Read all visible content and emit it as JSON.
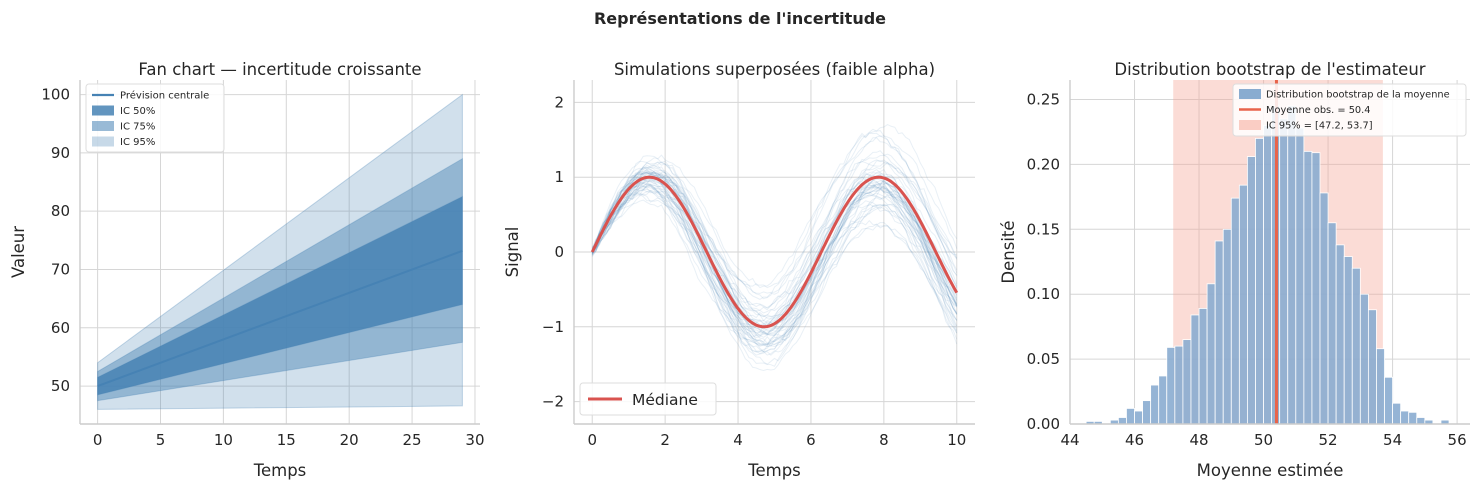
{
  "suptitle": "Représentations de l'incertitude",
  "chart_data": [
    {
      "type": "area",
      "title": "Fan chart — incertitude croissante",
      "xlabel": "Temps",
      "ylabel": "Valeur",
      "xlim": [
        -1.4,
        30.4
      ],
      "ylim": [
        43.5,
        102.5
      ],
      "xticks": [
        0,
        5,
        10,
        15,
        20,
        25,
        30
      ],
      "yticks": [
        50,
        60,
        70,
        80,
        90,
        100
      ],
      "grid": true,
      "legend_position": "upper-left",
      "central": {
        "name": "Prévision centrale",
        "x": [
          0,
          29
        ],
        "y": [
          50,
          73.2
        ],
        "color": "#4682B4"
      },
      "bands": [
        {
          "name": "IC 95%",
          "x": [
            0,
            29
          ],
          "lower": [
            46,
            46.6
          ],
          "upper": [
            54,
            100
          ],
          "color": "#4682B4",
          "opacity": 0.25
        },
        {
          "name": "IC 75%",
          "x": [
            0,
            29
          ],
          "lower": [
            47.5,
            57.5
          ],
          "upper": [
            52.5,
            89
          ],
          "color": "#4682B4",
          "opacity": 0.45
        },
        {
          "name": "IC 50%",
          "x": [
            0,
            29
          ],
          "lower": [
            48.5,
            64
          ],
          "upper": [
            51.5,
            82.5
          ],
          "color": "#4682B4",
          "opacity": 0.85
        }
      ],
      "legend": [
        "Prévision centrale",
        "IC 50%",
        "IC 75%",
        "IC 95%"
      ]
    },
    {
      "type": "line",
      "title": "Simulations superposées (faible alpha)",
      "xlabel": "Temps",
      "ylabel": "Signal",
      "xlim": [
        -0.5,
        10.5
      ],
      "ylim": [
        -2.3,
        2.3
      ],
      "xticks": [
        0,
        2,
        4,
        6,
        8,
        10
      ],
      "yticks": [
        -2,
        -1,
        0,
        1,
        2
      ],
      "ytick_labels": [
        "−2",
        "−1",
        "0",
        "1",
        "2"
      ],
      "grid": true,
      "legend_position": "lower-left",
      "median": {
        "name": "Médiane",
        "function": "sin",
        "x_range": [
          0,
          10
        ],
        "color": "#d9534f"
      },
      "simulations": {
        "count": 50,
        "color": "#4682B4",
        "opacity": 0.12,
        "noise_sd_at_end": 0.6
      },
      "legend": [
        "Médiane"
      ]
    },
    {
      "type": "bar",
      "title": "Distribution bootstrap de l'estimateur",
      "xlabel": "Moyenne estimée",
      "ylabel": "Densité",
      "xlim": [
        44,
        56.4
      ],
      "ylim": [
        0,
        0.265
      ],
      "xticks": [
        44,
        46,
        48,
        50,
        52,
        54,
        56
      ],
      "yticks": [
        0,
        0.05,
        0.1,
        0.15,
        0.2,
        0.25
      ],
      "ytick_labels": [
        "0.00",
        "0.05",
        "0.10",
        "0.15",
        "0.20",
        "0.25"
      ],
      "grid": true,
      "legend_position": "upper-right",
      "bin_start": 44.5,
      "bin_width": 0.25,
      "densities": [
        0.002,
        0.002,
        0.0,
        0.003,
        0.005,
        0.012,
        0.01,
        0.018,
        0.03,
        0.037,
        0.059,
        0.06,
        0.065,
        0.084,
        0.089,
        0.108,
        0.141,
        0.15,
        0.174,
        0.184,
        0.206,
        0.22,
        0.23,
        0.245,
        0.235,
        0.245,
        0.228,
        0.21,
        0.209,
        0.178,
        0.155,
        0.138,
        0.129,
        0.12,
        0.1,
        0.088,
        0.058,
        0.036,
        0.016,
        0.01,
        0.009,
        0.005,
        0.003,
        0.0,
        0.003
      ],
      "hist_name": "Distribution bootstrap de la moyenne",
      "hist_color": "#89acd0",
      "mean": {
        "name": "Moyenne obs. = 50.4",
        "value": 50.4,
        "color": "#e8634a"
      },
      "ci": {
        "name": "IC 95% = [47.2, 53.7]",
        "lower": 47.2,
        "upper": 53.7,
        "color": "#f6a799"
      },
      "legend": [
        "Distribution bootstrap de la moyenne",
        "Moyenne obs. = 50.4",
        "IC 95% = [47.2, 53.7]"
      ]
    }
  ]
}
